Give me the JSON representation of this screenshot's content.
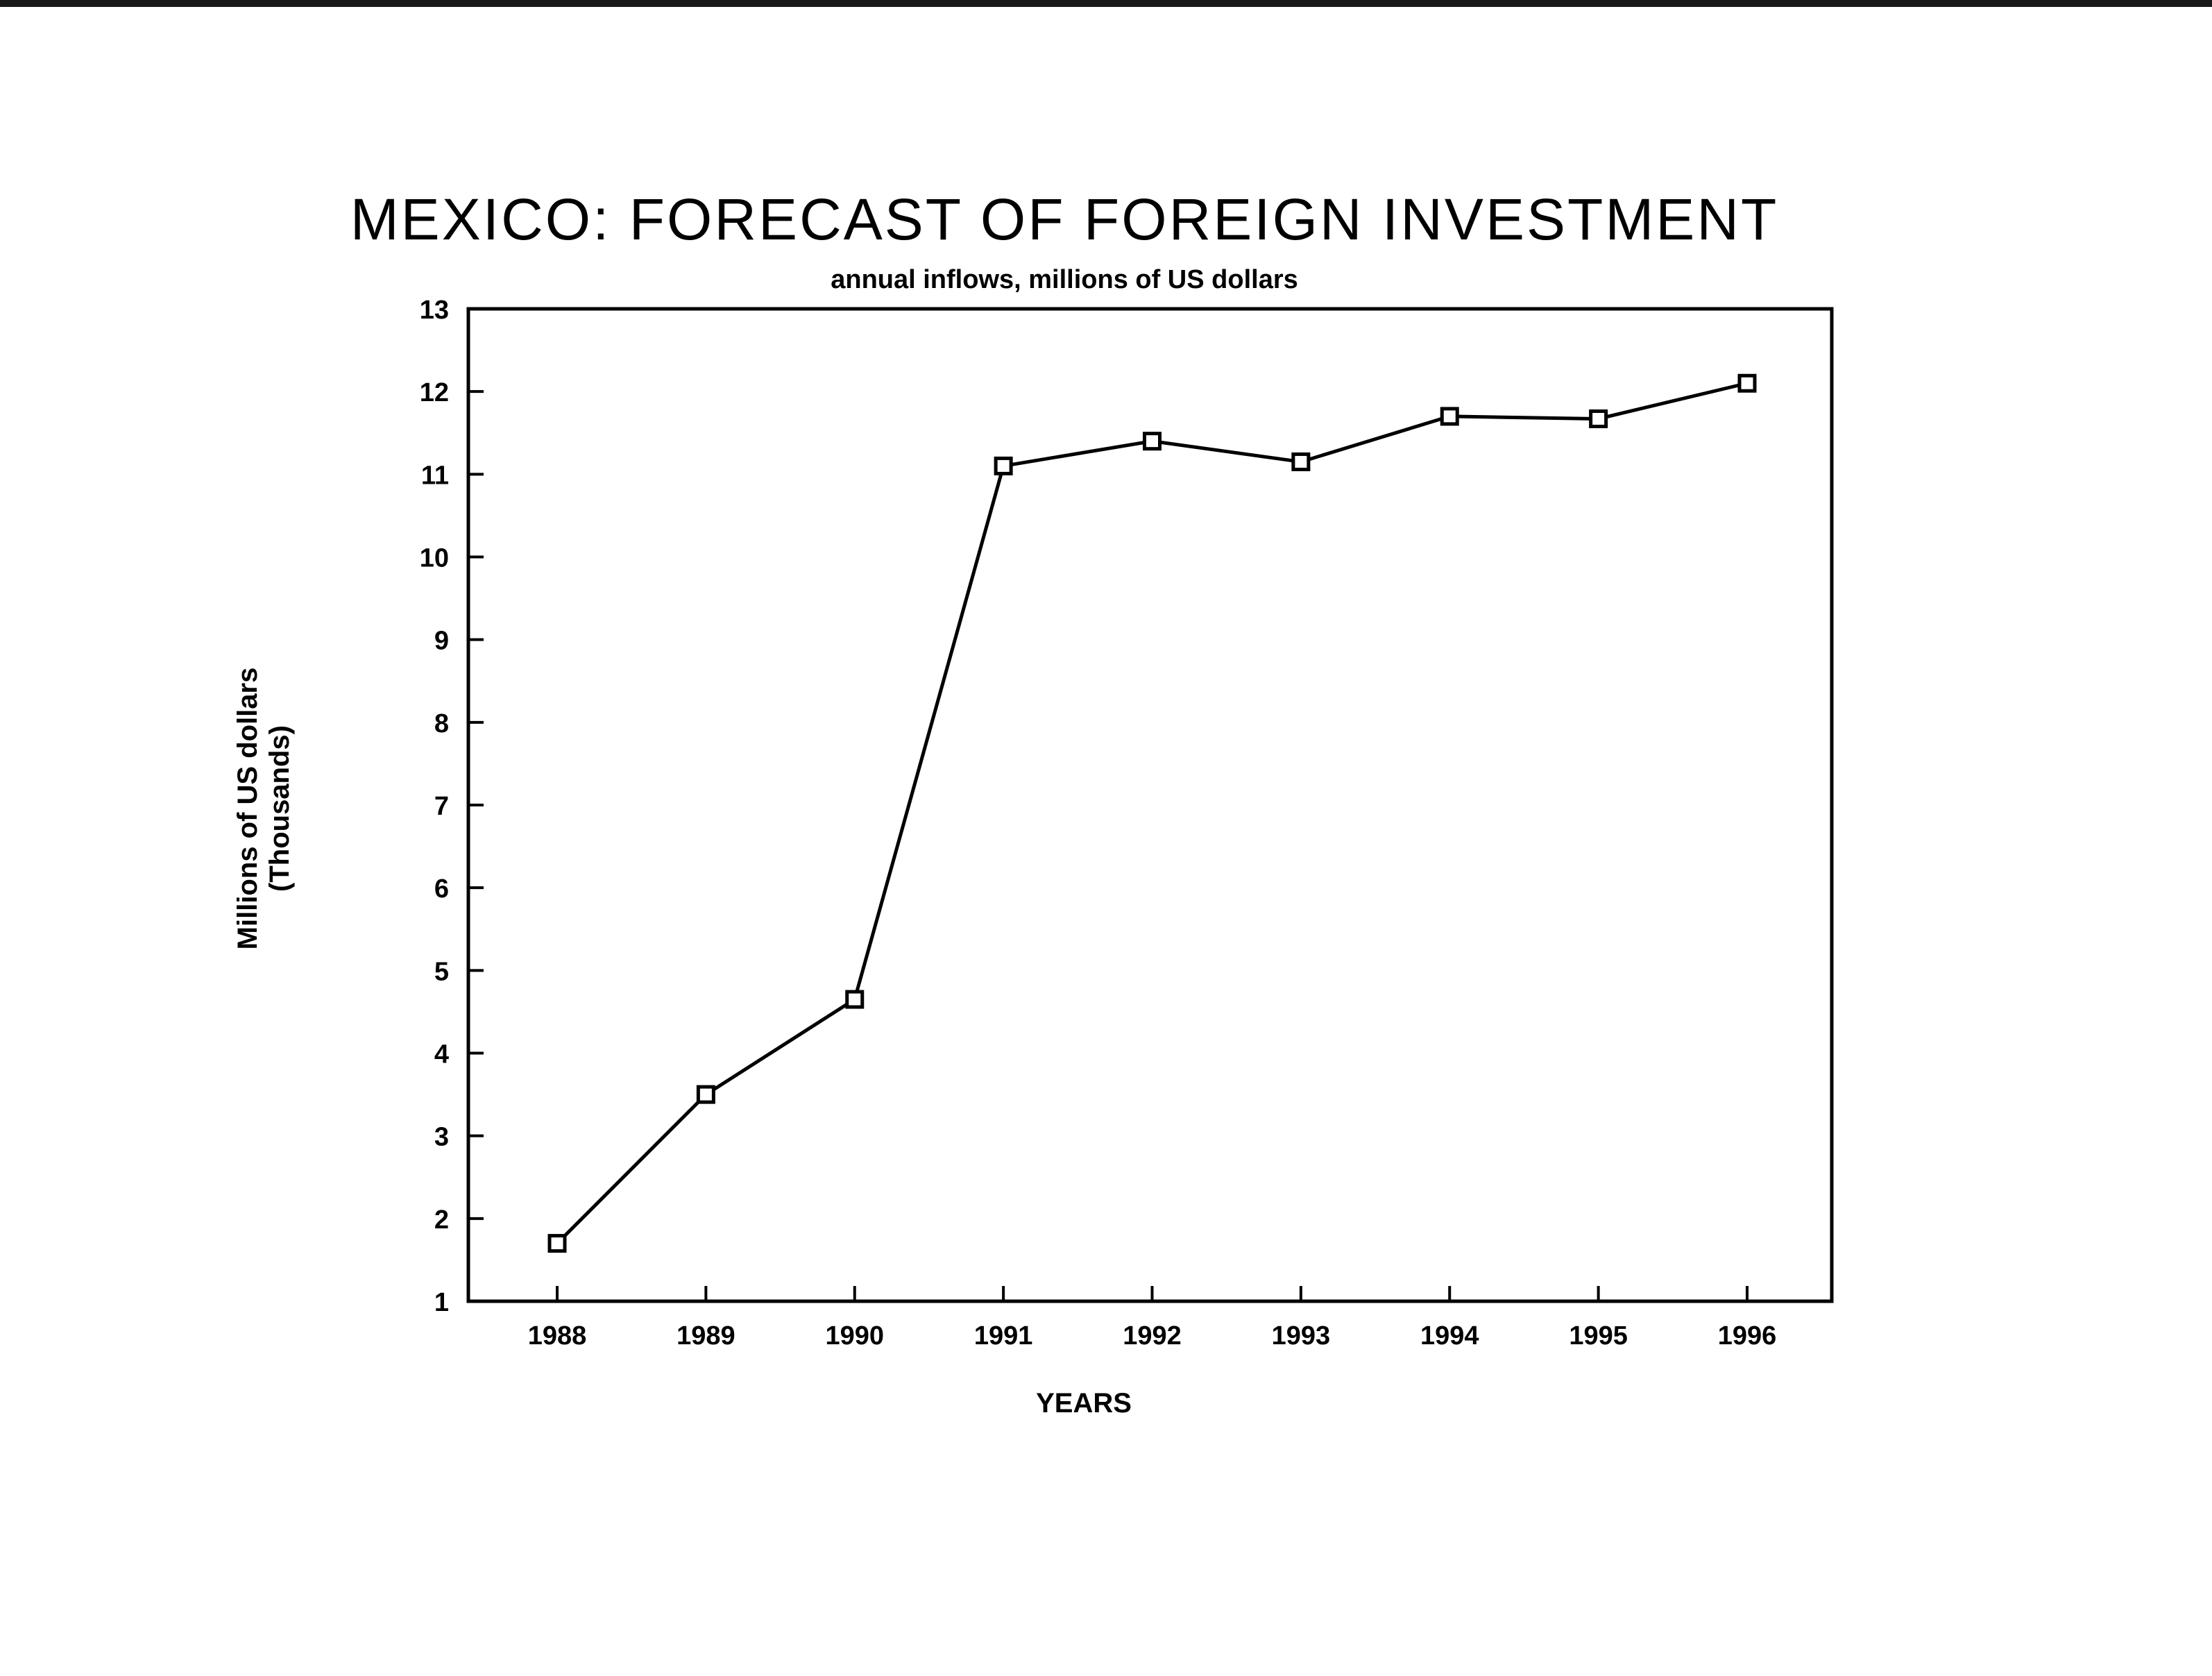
{
  "chart_data": {
    "type": "line",
    "title": "MEXICO: FORECAST OF FOREIGN INVESTMENT",
    "subtitle": "annual inflows, millions of US dollars",
    "xlabel": "YEARS",
    "ylabel": "Millions of US dollars",
    "ylabel_unit": "(Thousands)",
    "categories": [
      "1988",
      "1989",
      "1990",
      "1991",
      "1992",
      "1993",
      "1994",
      "1995",
      "1996"
    ],
    "series": [
      {
        "values": [
          1.7,
          3.5,
          4.65,
          11.1,
          11.4,
          11.15,
          11.7,
          11.67,
          12.1
        ],
        "marker": "square",
        "color": "#000000"
      }
    ],
    "ylim": [
      1,
      13
    ],
    "yticks": [
      1,
      2,
      3,
      4,
      5,
      6,
      7,
      8,
      9,
      10,
      11,
      12,
      13
    ],
    "grid": false,
    "legend": "none"
  }
}
